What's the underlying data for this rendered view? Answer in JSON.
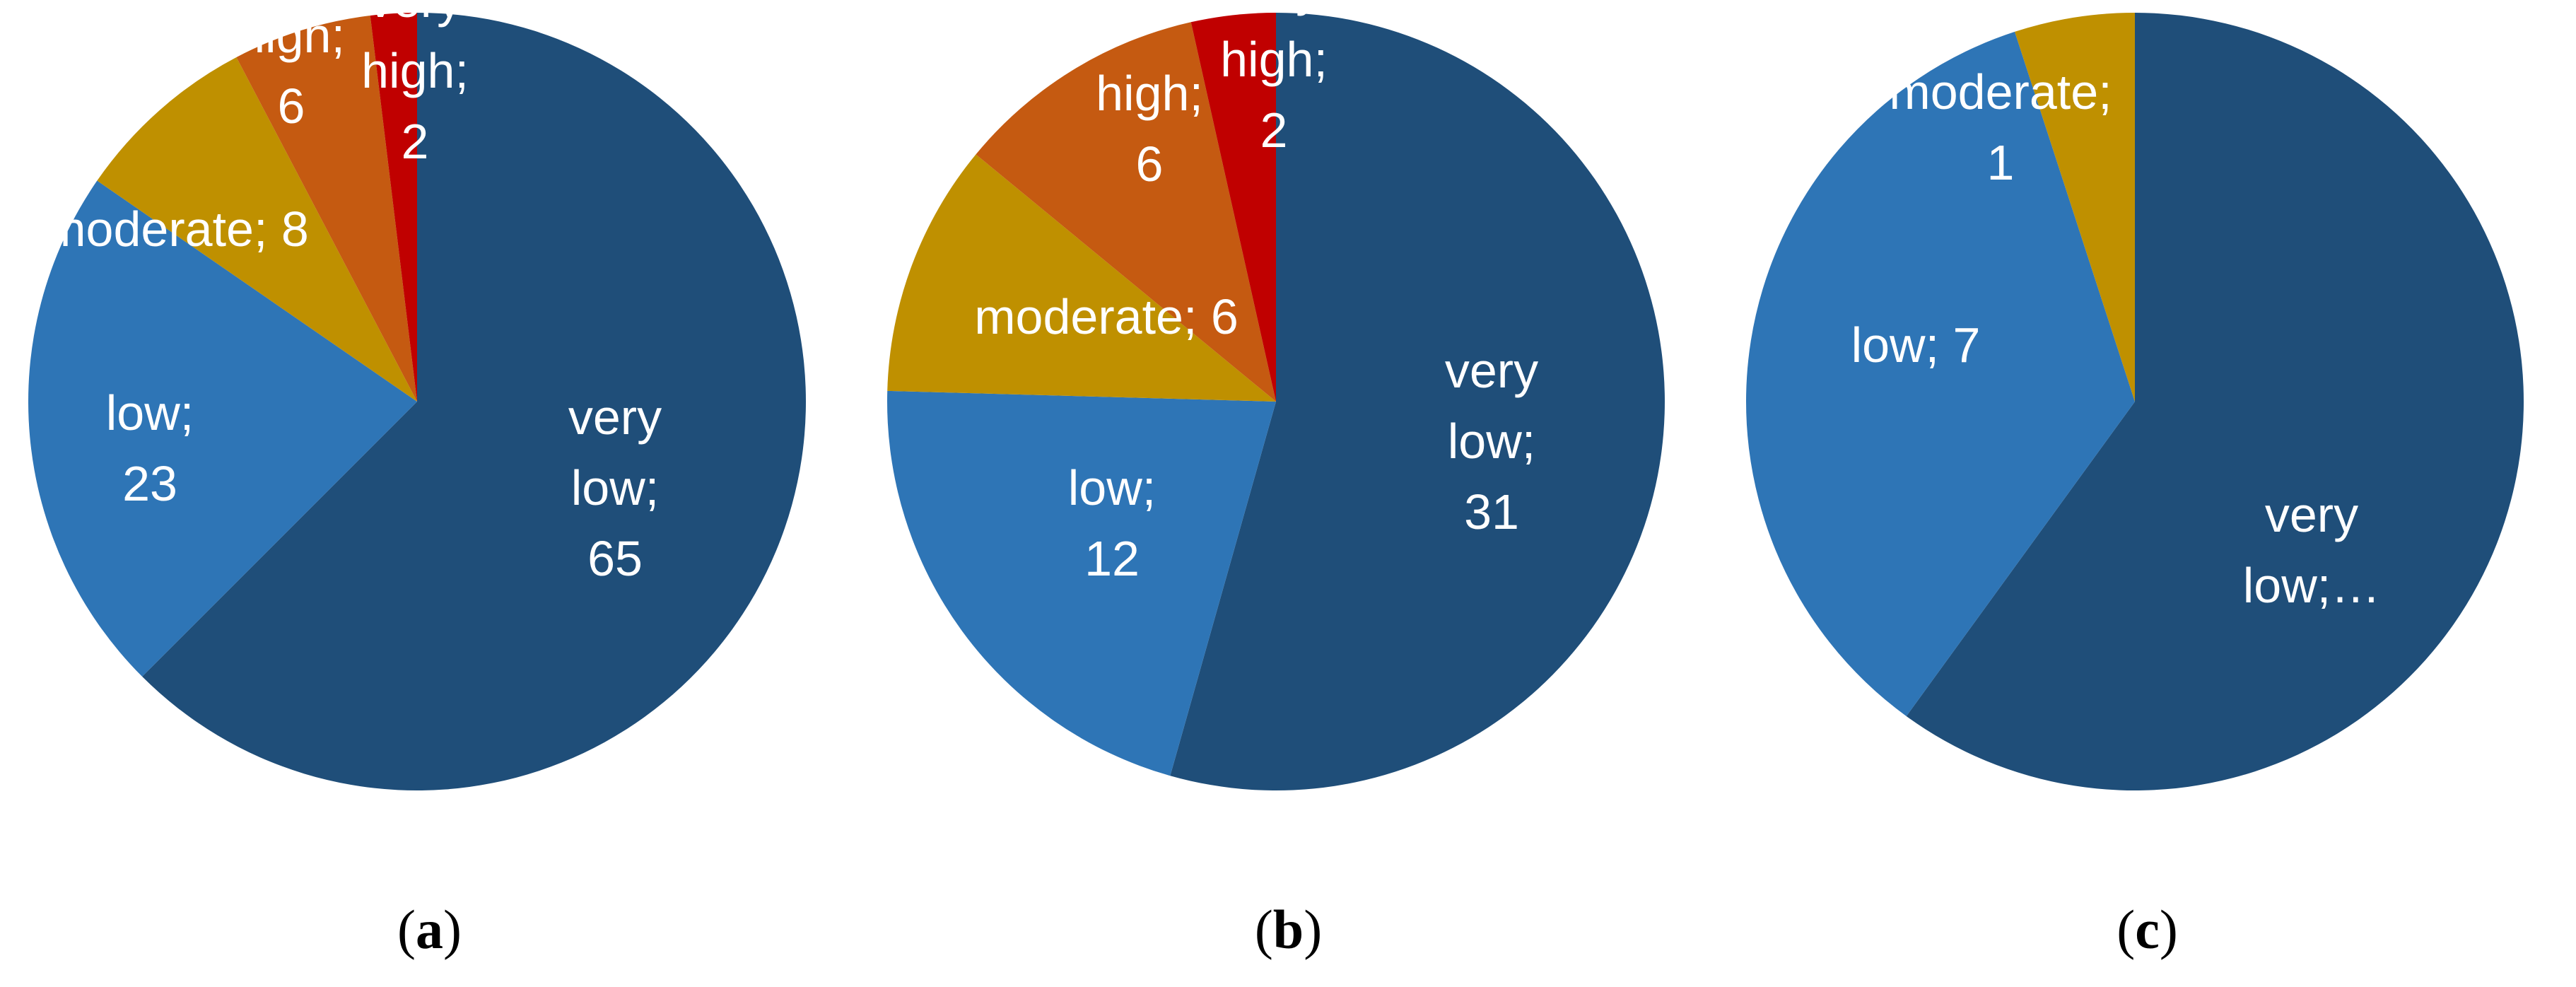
{
  "colors": {
    "very low": "#1f4e79",
    "low": "#2e75b6",
    "moderate": "#bf9000",
    "high": "#c55a11",
    "very high": "#c00000"
  },
  "chart_data": [
    {
      "type": "pie",
      "caption_letter": "a",
      "slices": [
        {
          "category": "very low",
          "value": 65,
          "label_lines": [
            "very",
            "low;",
            "65"
          ]
        },
        {
          "category": "low",
          "value": 23,
          "label_lines": [
            "low;",
            "23"
          ]
        },
        {
          "category": "moderate",
          "value": 8,
          "label_lines": [
            "moderate; 8"
          ]
        },
        {
          "category": "high",
          "value": 6,
          "label_lines": [
            "high;",
            "6"
          ]
        },
        {
          "category": "very high",
          "value": 2,
          "label_lines": [
            "very",
            "high;",
            "2"
          ]
        }
      ]
    },
    {
      "type": "pie",
      "caption_letter": "b",
      "slices": [
        {
          "category": "very low",
          "value": 31,
          "label_lines": [
            "very",
            "low;",
            "31"
          ]
        },
        {
          "category": "low",
          "value": 12,
          "label_lines": [
            "low;",
            "12"
          ]
        },
        {
          "category": "moderate",
          "value": 6,
          "label_lines": [
            "moderate; 6"
          ]
        },
        {
          "category": "high",
          "value": 6,
          "label_lines": [
            "high;",
            "6"
          ]
        },
        {
          "category": "very high",
          "value": 2,
          "label_lines": [
            "very",
            "high;",
            "2"
          ]
        }
      ]
    },
    {
      "type": "pie",
      "caption_letter": "c",
      "slices": [
        {
          "category": "very low",
          "value": 12,
          "label_lines": [
            "very",
            "low;…"
          ]
        },
        {
          "category": "low",
          "value": 7,
          "label_lines": [
            "low; 7"
          ]
        },
        {
          "category": "moderate",
          "value": 1,
          "label_lines": [
            "moderate;",
            "1"
          ]
        }
      ]
    }
  ]
}
